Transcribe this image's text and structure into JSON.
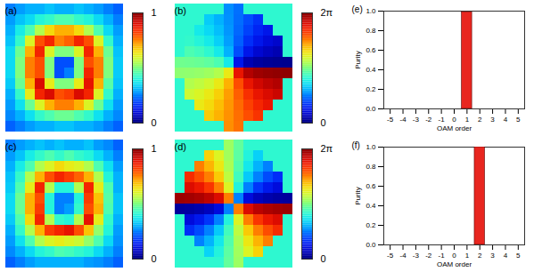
{
  "chart_data": [
    {
      "type": "heatmap",
      "title": "(a)",
      "tick_labels": false,
      "cells": [
        [
          0.25,
          0.28,
          0.3,
          0.3,
          0.32,
          0.3,
          0.3,
          0.32,
          0.3,
          0.28,
          0.25,
          0.22
        ],
        [
          0.28,
          0.32,
          0.35,
          0.4,
          0.42,
          0.45,
          0.45,
          0.42,
          0.4,
          0.35,
          0.3,
          0.25
        ],
        [
          0.3,
          0.38,
          0.45,
          0.55,
          0.65,
          0.7,
          0.7,
          0.65,
          0.55,
          0.45,
          0.35,
          0.28
        ],
        [
          0.32,
          0.42,
          0.6,
          0.8,
          0.85,
          0.75,
          0.78,
          0.85,
          0.8,
          0.6,
          0.42,
          0.3
        ],
        [
          0.35,
          0.48,
          0.7,
          0.85,
          0.6,
          0.5,
          0.5,
          0.6,
          0.85,
          0.7,
          0.48,
          0.32
        ],
        [
          0.35,
          0.5,
          0.75,
          0.8,
          0.5,
          0.2,
          0.2,
          0.5,
          0.8,
          0.75,
          0.5,
          0.33
        ],
        [
          0.35,
          0.5,
          0.75,
          0.8,
          0.5,
          0.2,
          0.25,
          0.5,
          0.85,
          0.75,
          0.5,
          0.33
        ],
        [
          0.33,
          0.48,
          0.7,
          0.9,
          0.62,
          0.5,
          0.5,
          0.62,
          0.88,
          0.7,
          0.46,
          0.32
        ],
        [
          0.3,
          0.42,
          0.62,
          0.85,
          0.9,
          0.8,
          0.82,
          0.9,
          0.85,
          0.6,
          0.42,
          0.3
        ],
        [
          0.28,
          0.36,
          0.48,
          0.6,
          0.7,
          0.75,
          0.75,
          0.7,
          0.6,
          0.48,
          0.36,
          0.28
        ],
        [
          0.26,
          0.3,
          0.36,
          0.42,
          0.45,
          0.48,
          0.48,
          0.45,
          0.42,
          0.36,
          0.3,
          0.26
        ],
        [
          0.22,
          0.25,
          0.28,
          0.3,
          0.3,
          0.32,
          0.32,
          0.3,
          0.3,
          0.28,
          0.25,
          0.22
        ]
      ],
      "colorbar": {
        "range": [
          0,
          1
        ],
        "ticks": [
          0,
          1
        ]
      }
    },
    {
      "type": "heatmap",
      "title": "(b)",
      "tick_labels": false,
      "cells": [
        [
          2.6,
          2.6,
          2.6,
          2.6,
          2.6,
          1.66,
          1.48,
          2.6,
          2.6,
          2.6,
          2.6,
          2.6
        ],
        [
          2.6,
          2.6,
          2.6,
          2.08,
          1.89,
          1.68,
          1.46,
          1.25,
          1.06,
          2.6,
          2.6,
          2.6
        ],
        [
          2.6,
          2.6,
          2.36,
          2.19,
          1.98,
          1.71,
          1.43,
          1.17,
          0.95,
          0.79,
          2.6,
          2.6
        ],
        [
          2.6,
          2.64,
          2.52,
          2.36,
          2.11,
          1.77,
          1.37,
          1.03,
          0.79,
          0.62,
          0.51,
          2.6
        ],
        [
          2.6,
          2.82,
          2.74,
          2.6,
          2.36,
          1.89,
          1.25,
          0.79,
          0.54,
          0.41,
          0.32,
          2.6
        ],
        [
          3.05,
          3.03,
          3.0,
          2.94,
          2.82,
          2.36,
          0.79,
          0.32,
          0.2,
          0.14,
          0.11,
          0.09
        ],
        [
          3.23,
          3.25,
          3.28,
          3.34,
          3.46,
          3.93,
          5.5,
          5.96,
          6.09,
          6.14,
          6.17,
          6.19
        ],
        [
          2.6,
          3.46,
          3.55,
          3.68,
          3.93,
          4.39,
          5.03,
          5.5,
          5.74,
          5.88,
          5.96,
          2.6
        ],
        [
          2.6,
          3.65,
          3.76,
          3.93,
          4.17,
          4.52,
          4.91,
          5.25,
          5.5,
          5.66,
          5.78,
          2.6
        ],
        [
          2.6,
          2.6,
          3.93,
          4.09,
          4.31,
          4.57,
          4.85,
          5.12,
          5.33,
          5.5,
          2.6,
          2.6
        ],
        [
          2.6,
          2.6,
          2.6,
          4.21,
          4.39,
          4.6,
          4.82,
          5.03,
          5.22,
          2.6,
          2.6,
          2.6
        ],
        [
          2.6,
          2.6,
          2.6,
          2.6,
          2.6,
          4.62,
          4.8,
          2.6,
          2.6,
          2.6,
          2.6,
          2.6
        ]
      ],
      "colorbar": {
        "range": [
          0,
          6.283
        ],
        "ticks": [
          0,
          {
            "value": 6.283,
            "label": "2π"
          }
        ]
      }
    },
    {
      "type": "bar",
      "title": "(e)",
      "x": [
        1
      ],
      "values": [
        0.99
      ],
      "color": "#e8261f",
      "xlabel": "OAM order",
      "ylabel": "Purity",
      "grid": false,
      "xlim": [
        -5.5,
        5.5
      ],
      "xticks": [
        -5,
        -4,
        -3,
        -2,
        -1,
        0,
        1,
        2,
        3,
        4,
        5
      ],
      "ylim": [
        0,
        1
      ],
      "yticks": [
        {
          "value": 0,
          "label": "0.0"
        },
        {
          "value": 0.2,
          "label": "0.2"
        },
        {
          "value": 0.4,
          "label": "0.4"
        },
        {
          "value": 0.6,
          "label": "0.6"
        },
        {
          "value": 0.8,
          "label": "0.8"
        },
        {
          "value": 1,
          "label": "1.0"
        }
      ]
    },
    {
      "type": "heatmap",
      "title": "(c)",
      "tick_labels": false,
      "cells": [
        [
          0.25,
          0.28,
          0.3,
          0.32,
          0.3,
          0.32,
          0.3,
          0.3,
          0.32,
          0.28,
          0.26,
          0.22
        ],
        [
          0.28,
          0.32,
          0.38,
          0.42,
          0.45,
          0.42,
          0.45,
          0.42,
          0.4,
          0.35,
          0.3,
          0.25
        ],
        [
          0.3,
          0.38,
          0.45,
          0.55,
          0.6,
          0.65,
          0.62,
          0.6,
          0.55,
          0.45,
          0.36,
          0.28
        ],
        [
          0.32,
          0.42,
          0.55,
          0.7,
          0.8,
          0.85,
          0.82,
          0.78,
          0.7,
          0.55,
          0.4,
          0.3
        ],
        [
          0.33,
          0.45,
          0.62,
          0.85,
          0.55,
          0.4,
          0.4,
          0.55,
          0.85,
          0.62,
          0.45,
          0.3
        ],
        [
          0.35,
          0.48,
          0.7,
          0.8,
          0.4,
          0.25,
          0.25,
          0.4,
          0.82,
          0.68,
          0.46,
          0.32
        ],
        [
          0.35,
          0.48,
          0.7,
          0.82,
          0.4,
          0.25,
          0.28,
          0.42,
          0.8,
          0.7,
          0.45,
          0.32
        ],
        [
          0.33,
          0.45,
          0.65,
          0.85,
          0.55,
          0.42,
          0.4,
          0.55,
          0.88,
          0.62,
          0.42,
          0.3
        ],
        [
          0.3,
          0.42,
          0.55,
          0.7,
          0.82,
          0.85,
          0.88,
          0.8,
          0.68,
          0.52,
          0.4,
          0.28
        ],
        [
          0.28,
          0.36,
          0.45,
          0.55,
          0.6,
          0.62,
          0.6,
          0.58,
          0.52,
          0.45,
          0.35,
          0.27
        ],
        [
          0.26,
          0.3,
          0.35,
          0.4,
          0.42,
          0.45,
          0.44,
          0.42,
          0.4,
          0.35,
          0.3,
          0.25
        ],
        [
          0.22,
          0.25,
          0.28,
          0.3,
          0.3,
          0.3,
          0.3,
          0.3,
          0.28,
          0.27,
          0.25,
          0.22
        ]
      ],
      "colorbar": {
        "range": [
          0,
          1
        ],
        "ticks": [
          0,
          1
        ]
      }
    },
    {
      "type": "heatmap",
      "title": "(d)",
      "tick_labels": false,
      "cells": [
        [
          2.6,
          2.6,
          2.6,
          2.6,
          2.6,
          3.32,
          2.96,
          2.6,
          2.6,
          2.6,
          2.6,
          2.6
        ],
        [
          2.6,
          2.6,
          2.6,
          4.16,
          3.78,
          3.36,
          2.92,
          2.5,
          2.12,
          2.6,
          2.6,
          2.6
        ],
        [
          2.6,
          2.6,
          4.72,
          4.38,
          3.96,
          3.42,
          2.86,
          2.34,
          1.9,
          1.58,
          2.6,
          2.6
        ],
        [
          2.6,
          5.28,
          5.04,
          4.72,
          4.22,
          3.54,
          2.74,
          2.06,
          1.58,
          1.24,
          1.02,
          2.6
        ],
        [
          2.6,
          5.64,
          5.48,
          5.2,
          4.72,
          3.78,
          2.5,
          1.58,
          1.08,
          0.82,
          0.64,
          2.6
        ],
        [
          6.1,
          6.06,
          6.0,
          5.88,
          5.64,
          4.72,
          1.58,
          0.64,
          0.4,
          0.28,
          0.22,
          0.18
        ],
        [
          0.18,
          0.22,
          0.28,
          0.4,
          0.64,
          1.58,
          4.72,
          5.64,
          5.9,
          6.0,
          6.06,
          6.1
        ],
        [
          2.6,
          0.64,
          0.82,
          1.08,
          1.58,
          2.5,
          3.78,
          4.72,
          5.2,
          5.48,
          5.64,
          2.6
        ],
        [
          2.6,
          1.02,
          1.24,
          1.58,
          2.06,
          2.74,
          3.54,
          4.22,
          4.72,
          5.04,
          5.28,
          2.6
        ],
        [
          2.6,
          2.6,
          1.58,
          1.9,
          2.34,
          2.86,
          3.42,
          3.96,
          4.38,
          4.72,
          2.6,
          2.6
        ],
        [
          2.6,
          2.6,
          2.6,
          2.14,
          2.5,
          2.92,
          3.36,
          3.78,
          4.16,
          2.6,
          2.6,
          2.6
        ],
        [
          2.6,
          2.6,
          2.6,
          2.6,
          2.6,
          2.96,
          3.32,
          2.6,
          2.6,
          2.6,
          2.6,
          2.6
        ]
      ],
      "colorbar": {
        "range": [
          0,
          6.283
        ],
        "ticks": [
          0,
          {
            "value": 6.283,
            "label": "2π"
          }
        ]
      }
    },
    {
      "type": "bar",
      "title": "(f)",
      "x": [
        2
      ],
      "values": [
        1.0
      ],
      "color": "#e8261f",
      "xlabel": "OAM order",
      "ylabel": "Purity",
      "grid": false,
      "xlim": [
        -5.5,
        5.5
      ],
      "xticks": [
        -5,
        -4,
        -3,
        -2,
        -1,
        0,
        1,
        2,
        3,
        4,
        5
      ],
      "ylim": [
        0,
        1
      ],
      "yticks": [
        {
          "value": 0,
          "label": "0.0"
        },
        {
          "value": 0.2,
          "label": "0.2"
        },
        {
          "value": 0.4,
          "label": "0.4"
        },
        {
          "value": 0.6,
          "label": "0.6"
        },
        {
          "value": 0.8,
          "label": "0.8"
        },
        {
          "value": 1,
          "label": "1.0"
        }
      ]
    }
  ]
}
